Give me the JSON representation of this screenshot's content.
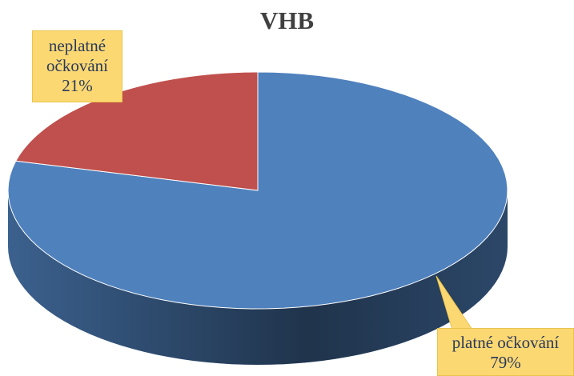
{
  "chart_data": {
    "type": "pie",
    "title": "VHB",
    "categories": [
      "platné očkování",
      "neplatné očkování"
    ],
    "values": [
      79,
      21
    ],
    "value_labels": [
      "79%",
      "21%"
    ],
    "colors": [
      "#4f81bd",
      "#c0504d"
    ]
  }
}
